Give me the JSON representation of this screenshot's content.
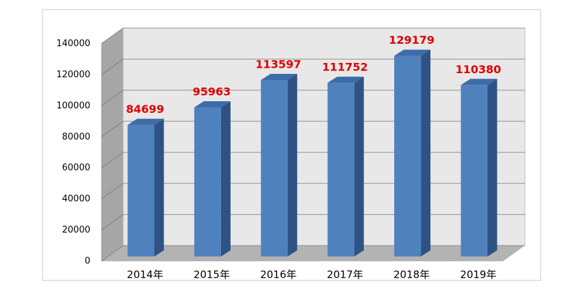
{
  "chart_data": {
    "type": "bar3d",
    "categories": [
      "2014年",
      "2015年",
      "2016年",
      "2017年",
      "2018年",
      "2019年"
    ],
    "values": [
      84699,
      95963,
      113597,
      111752,
      129179,
      110380
    ],
    "color": "#4f81bd",
    "value_label_color": "#e00000",
    "ylim": [
      0,
      140000
    ],
    "yticks": [
      0,
      20000,
      40000,
      60000,
      80000,
      100000,
      120000,
      140000
    ],
    "grid": true
  }
}
